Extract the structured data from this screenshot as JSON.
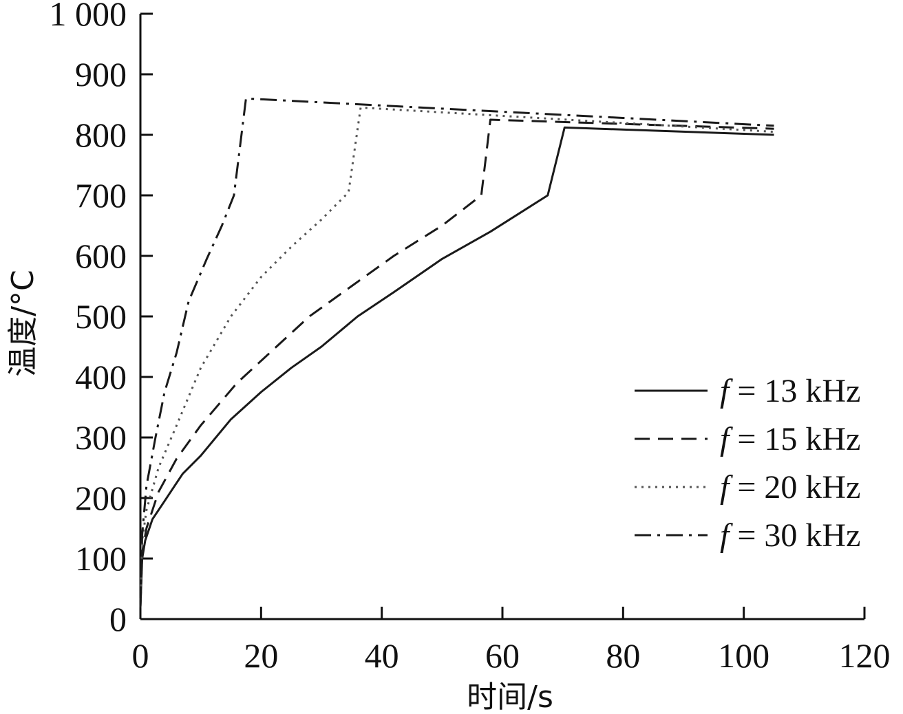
{
  "chart_data": {
    "type": "line",
    "title": "",
    "xlabel": "时间/s",
    "ylabel": "温度/°C",
    "xlim": [
      0,
      120
    ],
    "ylim": [
      0,
      1000
    ],
    "xticks": [
      0,
      20,
      40,
      60,
      80,
      100,
      120
    ],
    "yticks": [
      0,
      100,
      200,
      300,
      400,
      500,
      600,
      700,
      800,
      900,
      1000
    ],
    "xtick_labels": [
      "0",
      "20",
      "40",
      "60",
      "80",
      "100",
      "120"
    ],
    "ytick_labels": [
      "0",
      "100",
      "200",
      "300",
      "400",
      "500",
      "600",
      "700",
      "800",
      "900",
      "1 000"
    ],
    "grid": false,
    "legend_position": "right",
    "series": [
      {
        "name": "f = 13 kHz",
        "f": "f",
        "rest": " = 13 kHz",
        "style": "solid",
        "points": [
          [
            0,
            20
          ],
          [
            0.3,
            100
          ],
          [
            0.8,
            130
          ],
          [
            2,
            165
          ],
          [
            4,
            195
          ],
          [
            7,
            240
          ],
          [
            10,
            270
          ],
          [
            15,
            330
          ],
          [
            20,
            375
          ],
          [
            25,
            415
          ],
          [
            30,
            450
          ],
          [
            36,
            500
          ],
          [
            42,
            540
          ],
          [
            50,
            595
          ],
          [
            58,
            640
          ],
          [
            67.5,
            700
          ],
          [
            70.3,
            812
          ],
          [
            105,
            800
          ]
        ]
      },
      {
        "name": "f = 15 kHz",
        "f": "f",
        "rest": " = 15 kHz",
        "style": "dashed",
        "points": [
          [
            0,
            20
          ],
          [
            0.3,
            110
          ],
          [
            1,
            150
          ],
          [
            3,
            210
          ],
          [
            6,
            265
          ],
          [
            10,
            320
          ],
          [
            16,
            390
          ],
          [
            22,
            445
          ],
          [
            28,
            500
          ],
          [
            35,
            550
          ],
          [
            42,
            600
          ],
          [
            50,
            650
          ],
          [
            56.5,
            700
          ],
          [
            58,
            825
          ],
          [
            105,
            810
          ]
        ]
      },
      {
        "name": "f = 20 kHz",
        "f": "f",
        "rest": " = 20 kHz",
        "style": "dotted",
        "points": [
          [
            0,
            20
          ],
          [
            0.3,
            130
          ],
          [
            1,
            180
          ],
          [
            3,
            250
          ],
          [
            6,
            320
          ],
          [
            10,
            415
          ],
          [
            15,
            500
          ],
          [
            20,
            565
          ],
          [
            25,
            615
          ],
          [
            30,
            660
          ],
          [
            34.5,
            705
          ],
          [
            36.5,
            845
          ],
          [
            105,
            805
          ]
        ]
      },
      {
        "name": "f = 30 kHz",
        "f": "f",
        "rest": " = 30 kHz",
        "style": "dashdot",
        "points": [
          [
            0,
            20
          ],
          [
            0.3,
            140
          ],
          [
            1,
            220
          ],
          [
            2.5,
            300
          ],
          [
            4,
            375
          ],
          [
            6,
            440
          ],
          [
            8,
            525
          ],
          [
            11,
            595
          ],
          [
            13.5,
            650
          ],
          [
            15.5,
            700
          ],
          [
            17.5,
            860
          ],
          [
            105,
            815
          ]
        ]
      }
    ]
  }
}
